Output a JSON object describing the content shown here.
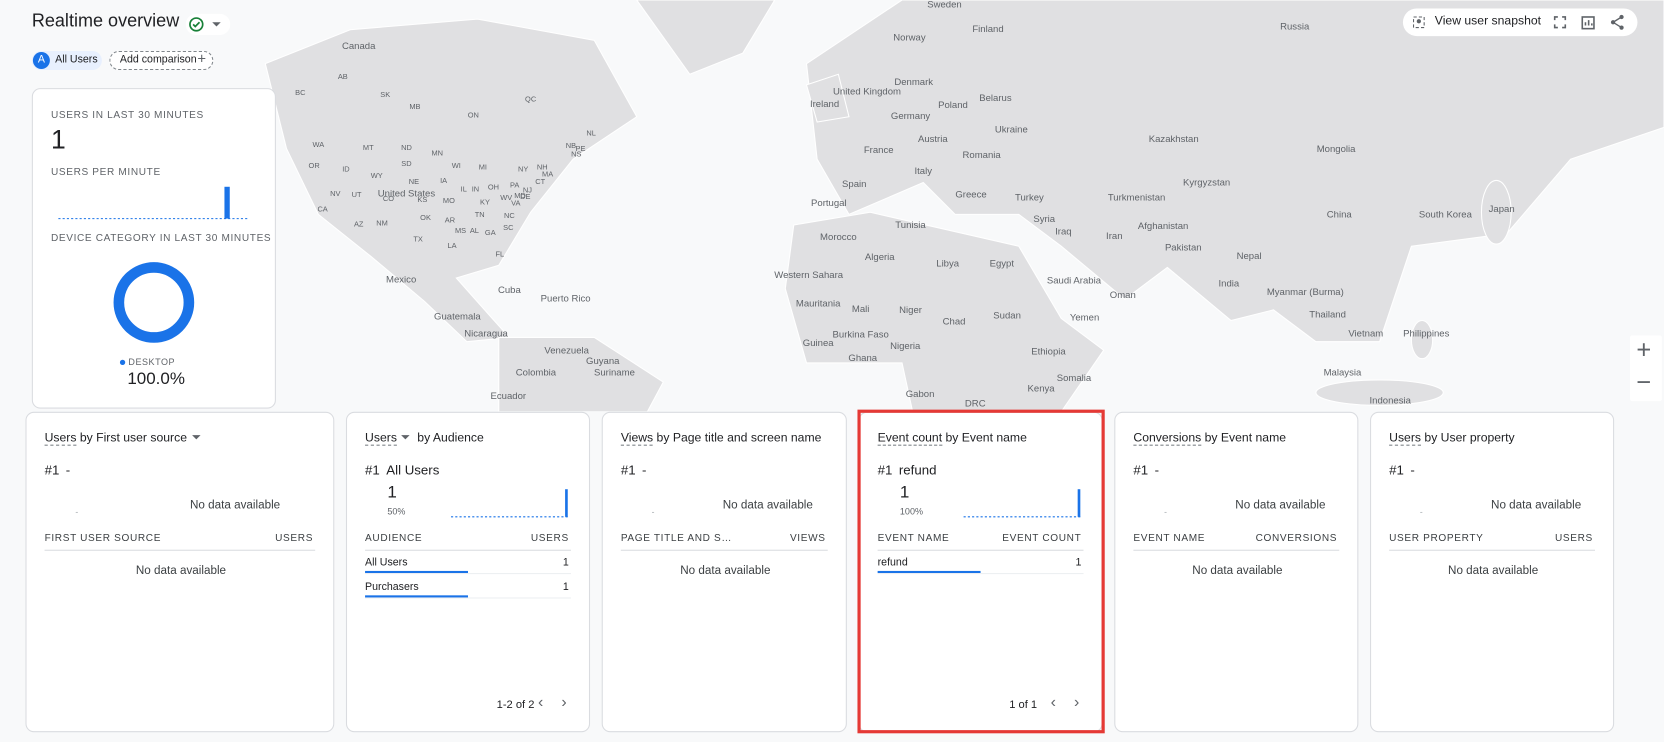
{
  "header": {
    "title": "Realtime overview",
    "chip_letter": "A",
    "chip": "All Users",
    "add_comparison": "Add comparison",
    "user_snapshot": "View user snapshot"
  },
  "summary": {
    "users_label": "USERS IN LAST 30 MINUTES",
    "users_value": 1,
    "per_minute_label": "USERS PER MINUTE",
    "per_minute": [
      0,
      0,
      0,
      0,
      0,
      0,
      0,
      0,
      0,
      0,
      0,
      0,
      0,
      0,
      0,
      0,
      0,
      0,
      0,
      0,
      0,
      0,
      0,
      0,
      0,
      0,
      1,
      0,
      0,
      0
    ],
    "device_label": "DEVICE CATEGORY IN LAST 30 MINUTES",
    "device_name": "DESKTOP",
    "device_value": 100,
    "device_value_label": "100.0%"
  },
  "map_labels": [
    "Sweden",
    "Finland",
    "Russia",
    "Canada",
    "Norway",
    "United Kingdom",
    "Denmark",
    "Ireland",
    "Belarus",
    "Poland",
    "Germany",
    "Ukraine",
    "Austria",
    "Kazakhstan",
    "France",
    "Romania",
    "Mongolia",
    "Italy",
    "Kyrgyzstan",
    "Spain",
    "Greece",
    "Turkey",
    "Turkmenistan",
    "Portugal",
    "Syria",
    "China",
    "South Korea",
    "Japan",
    "Tunisia",
    "Iraq",
    "Afghanistan",
    "Morocco",
    "Iran",
    "Pakistan",
    "Algeria",
    "Libya",
    "Egypt",
    "Nepal",
    "Western Sahara",
    "Saudi Arabia",
    "India",
    "Myanmar (Burma)",
    "Oman",
    "Mauritania",
    "Mali",
    "Niger",
    "Chad",
    "Sudan",
    "Thailand",
    "Yemen",
    "Burkina Faso",
    "Guinea",
    "Nigeria",
    "Ethiopia",
    "Vietnam",
    "Philippines",
    "Ghana",
    "Malaysia",
    "Somalia",
    "Kenya",
    "Gabon",
    "DRC",
    "Indonesia",
    "Mexico",
    "Cuba",
    "Puerto Rico",
    "Guatemala",
    "Nicaragua",
    "Venezuela",
    "Guyana",
    "Suriname",
    "Colombia",
    "Ecuador",
    "United States",
    "WA",
    "MT",
    "ND",
    "MN",
    "OR",
    "ID",
    "SD",
    "WI",
    "MI",
    "NY",
    "WY",
    "IA",
    "NE",
    "IL",
    "IN",
    "OH",
    "PA",
    "NV",
    "UT",
    "CO",
    "KS",
    "MO",
    "KY",
    "WV",
    "VA",
    "CA",
    "NM",
    "OK",
    "AR",
    "TN",
    "NC",
    "AZ",
    "MS",
    "AL",
    "GA",
    "SC",
    "TX",
    "LA",
    "FL",
    "BC",
    "AB",
    "SK",
    "MB",
    "ON",
    "QC",
    "NB",
    "NS",
    "PE",
    "NL",
    "NH",
    "MA",
    "CT",
    "NJ",
    "DE",
    "MD"
  ],
  "cards": [
    {
      "metric": "Users",
      "rest": "by First user source",
      "rank": "#1",
      "top": "-",
      "small": "-",
      "no_data": "No data available",
      "columns": [
        "FIRST USER SOURCE",
        "USERS"
      ],
      "empty": "No data available"
    },
    {
      "metric": "Users",
      "rest": "by Audience",
      "rank": "#1",
      "top": "All Users",
      "top_value": 1,
      "top_percent": "50%",
      "trend": [
        0,
        0,
        0,
        0,
        0,
        0,
        0,
        0,
        0,
        0,
        0,
        0,
        0,
        0,
        0,
        0,
        0,
        0,
        0,
        0,
        0,
        0,
        0,
        0,
        0,
        0,
        0,
        0,
        0,
        1
      ],
      "columns": [
        "AUDIENCE",
        "USERS"
      ],
      "rows": [
        [
          "All Users",
          1
        ],
        [
          "Purchasers",
          1
        ]
      ],
      "pagination": "1-2 of 2"
    },
    {
      "metric": "Views",
      "rest": "by Page title and screen name",
      "rank": "#1",
      "top": "-",
      "small": "-",
      "no_data": "No data available",
      "columns": [
        "PAGE TITLE AND S…",
        "VIEWS"
      ],
      "empty": "No data available"
    },
    {
      "metric": "Event count",
      "rest": "by Event name",
      "rank": "#1",
      "top": "refund",
      "top_value": 1,
      "top_percent": "100%",
      "trend": [
        0,
        0,
        0,
        0,
        0,
        0,
        0,
        0,
        0,
        0,
        0,
        0,
        0,
        0,
        0,
        0,
        0,
        0,
        0,
        0,
        0,
        0,
        0,
        0,
        0,
        0,
        0,
        0,
        0,
        1
      ],
      "columns": [
        "EVENT NAME",
        "EVENT COUNT"
      ],
      "rows": [
        [
          "refund",
          1
        ]
      ],
      "pagination": "1 of 1"
    },
    {
      "metric": "Conversions",
      "rest": "by Event name",
      "rank": "#1",
      "top": "-",
      "small": "-",
      "no_data": "No data available",
      "columns": [
        "EVENT NAME",
        "CONVERSIONS"
      ],
      "empty": "No data available"
    },
    {
      "metric": "Users",
      "rest": "by User property",
      "rank": "#1",
      "top": "-",
      "small": "-",
      "no_data": "No data available",
      "columns": [
        "USER PROPERTY",
        "USERS"
      ],
      "empty": "No data available"
    }
  ]
}
